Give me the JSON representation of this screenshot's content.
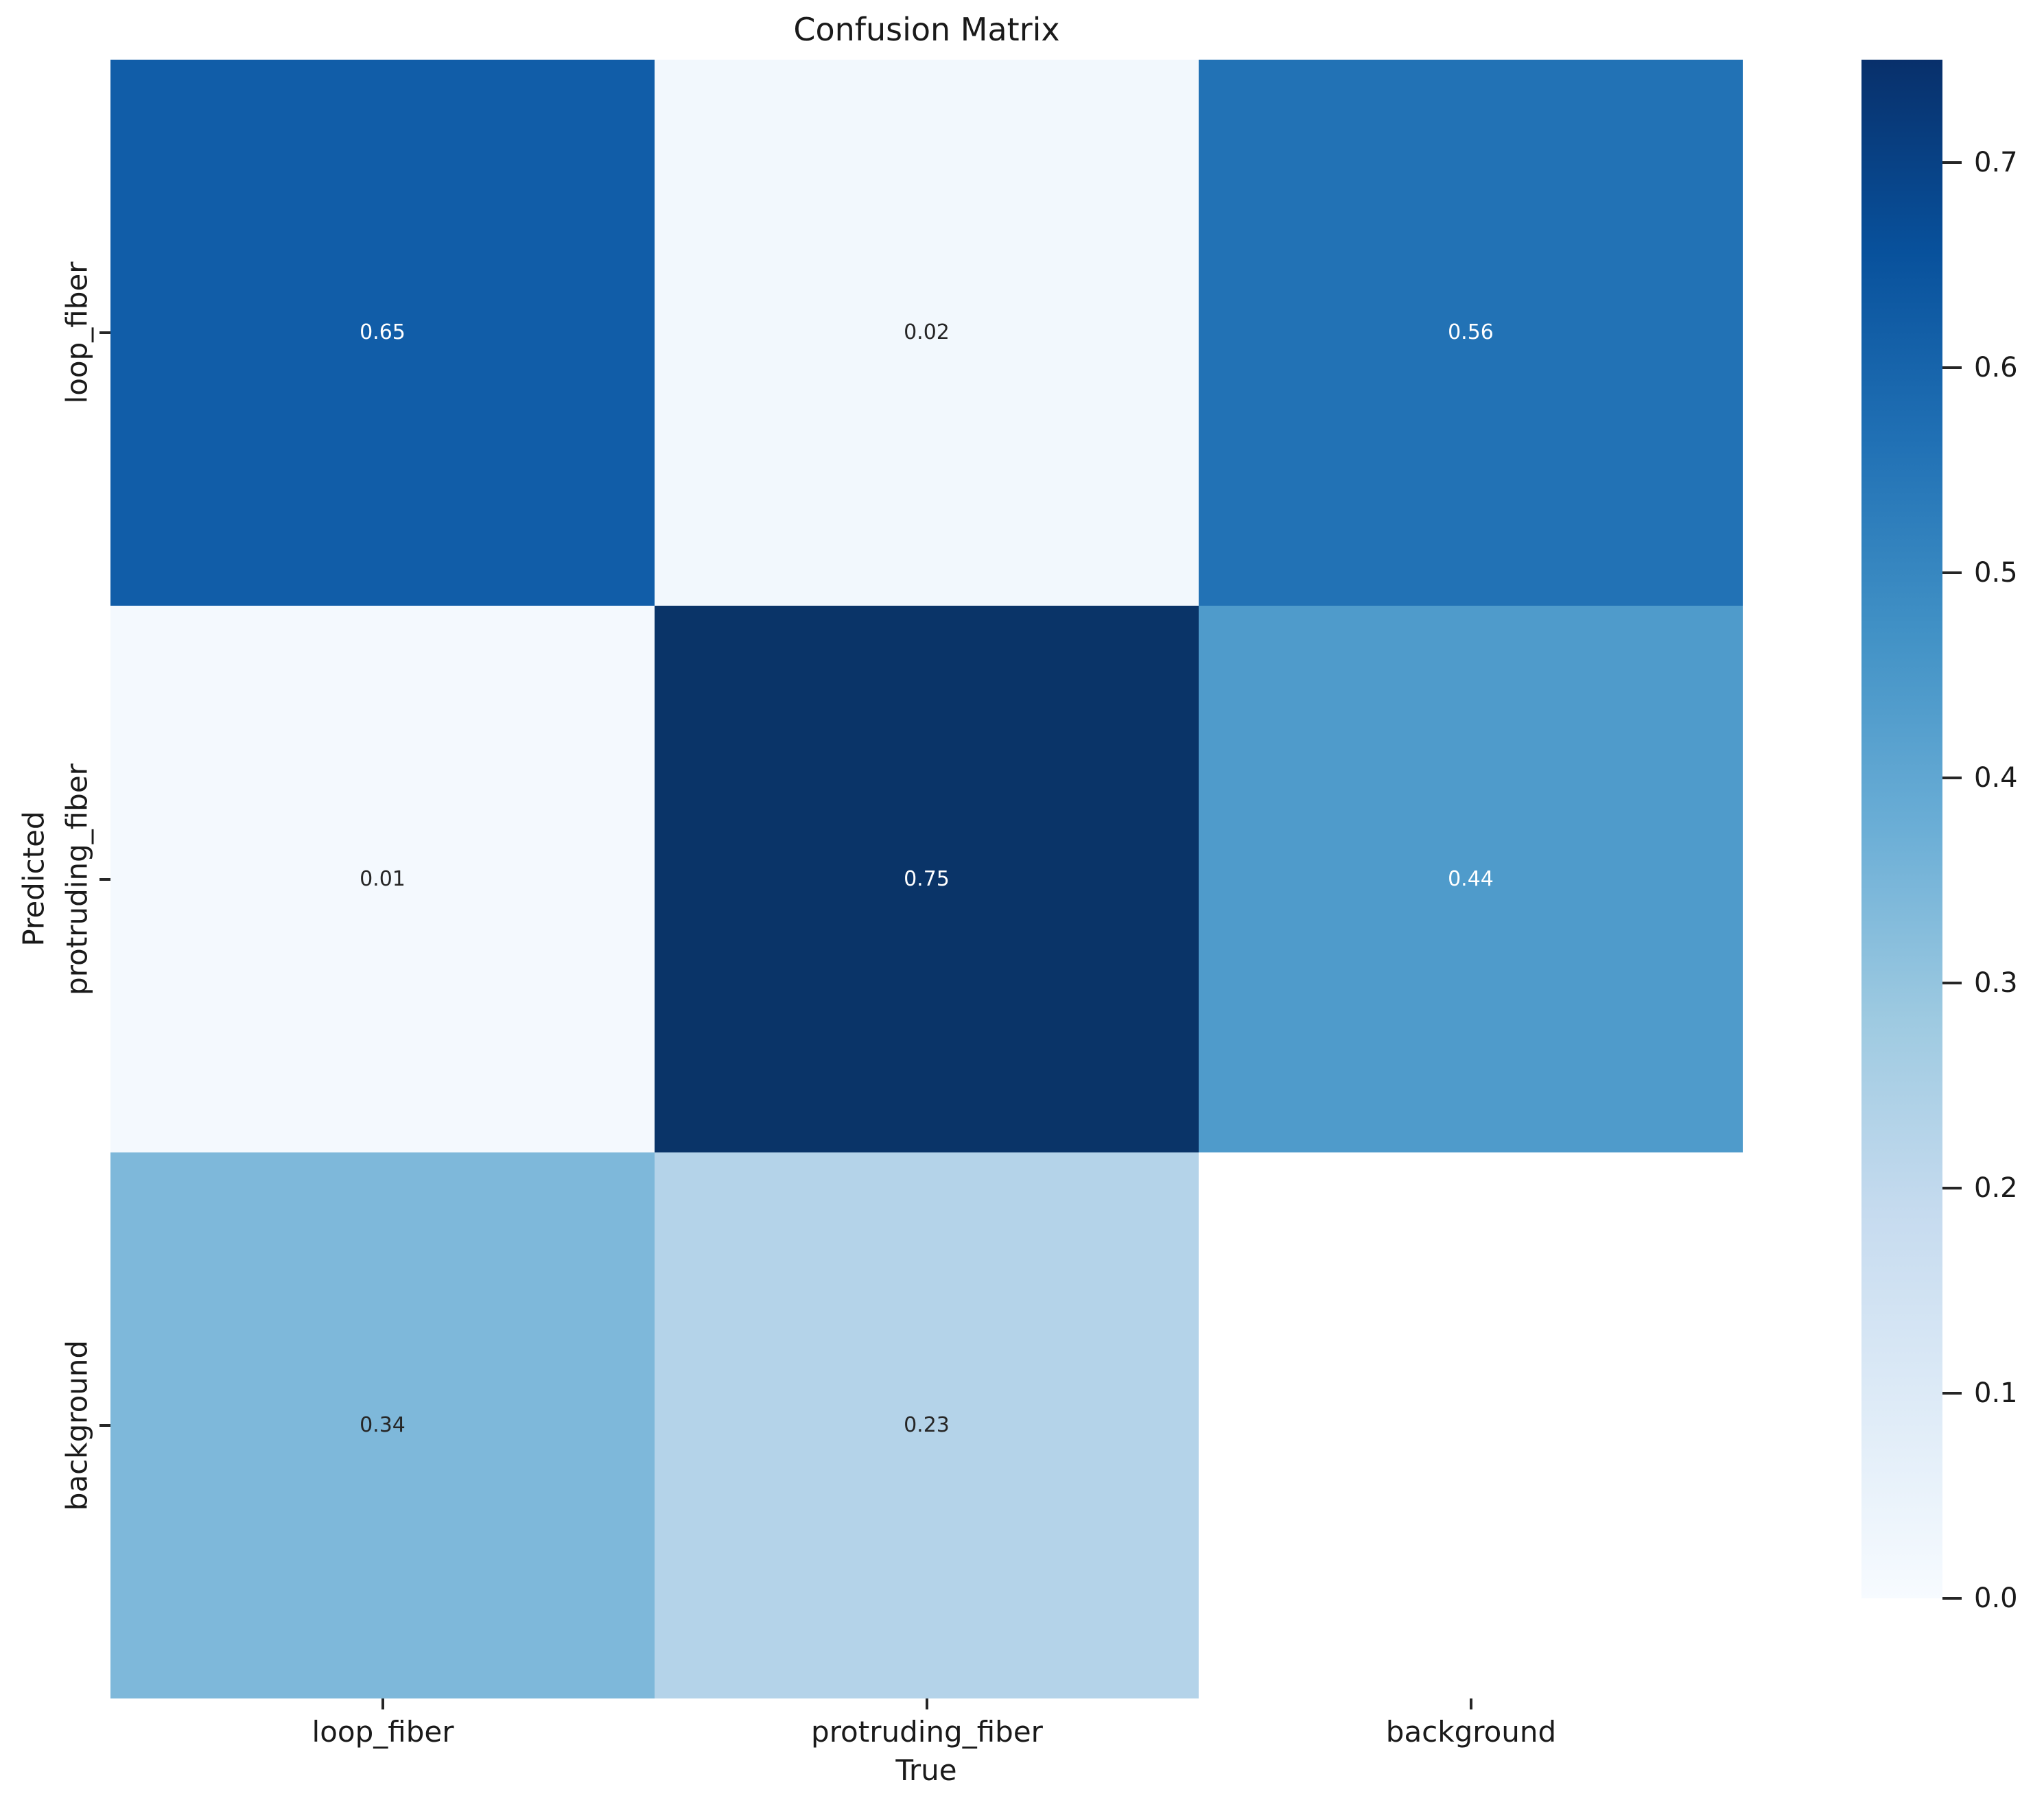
{
  "figure": {
    "background": "#ffffff"
  },
  "chart_data": {
    "type": "heatmap",
    "title": "Confusion Matrix",
    "xlabel": "True",
    "ylabel": "Predicted",
    "x_categories": [
      "loop_fiber",
      "protruding_fiber",
      "background"
    ],
    "y_categories": [
      "loop_fiber",
      "protruding_fiber",
      "background"
    ],
    "matrix": [
      [
        0.65,
        0.02,
        0.56
      ],
      [
        0.01,
        0.75,
        0.44
      ],
      [
        0.34,
        0.23,
        null
      ]
    ],
    "cell_labels": [
      [
        "0.65",
        "0.02",
        "0.56"
      ],
      [
        "0.01",
        "0.75",
        "0.44"
      ],
      [
        "0.34",
        "0.23",
        ""
      ]
    ],
    "cell_colors": [
      [
        "#115da8",
        "#f2f8fd",
        "#2272b5"
      ],
      [
        "#f4f9fe",
        "#0a3468",
        "#4f9bcb"
      ],
      [
        "#7eb8da",
        "#b4d3e9",
        "#ffffff"
      ]
    ],
    "cell_text_colors": [
      [
        "#ffffff",
        "#262626",
        "#ffffff"
      ],
      [
        "#262626",
        "#ffffff",
        "#ffffff"
      ],
      [
        "#262626",
        "#262626",
        "#262626"
      ]
    ],
    "colormap": "Blues",
    "vmin": 0.0,
    "vmax": 0.75,
    "grid": false,
    "legend": "colorbar-right",
    "colorbar": {
      "tick_labels": [
        "0.7",
        "0.6",
        "0.5",
        "0.4",
        "0.3",
        "0.2",
        "0.1",
        "0.0"
      ],
      "tick_values": [
        0.7,
        0.6,
        0.5,
        0.4,
        0.3,
        0.2,
        0.1,
        0.0
      ],
      "gradient_stops_top_to_bottom": [
        "#08306b",
        "#08519c",
        "#2171b5",
        "#4292c6",
        "#6baed6",
        "#9ecae1",
        "#c6dbef",
        "#deebf7",
        "#f7fbff"
      ]
    }
  }
}
